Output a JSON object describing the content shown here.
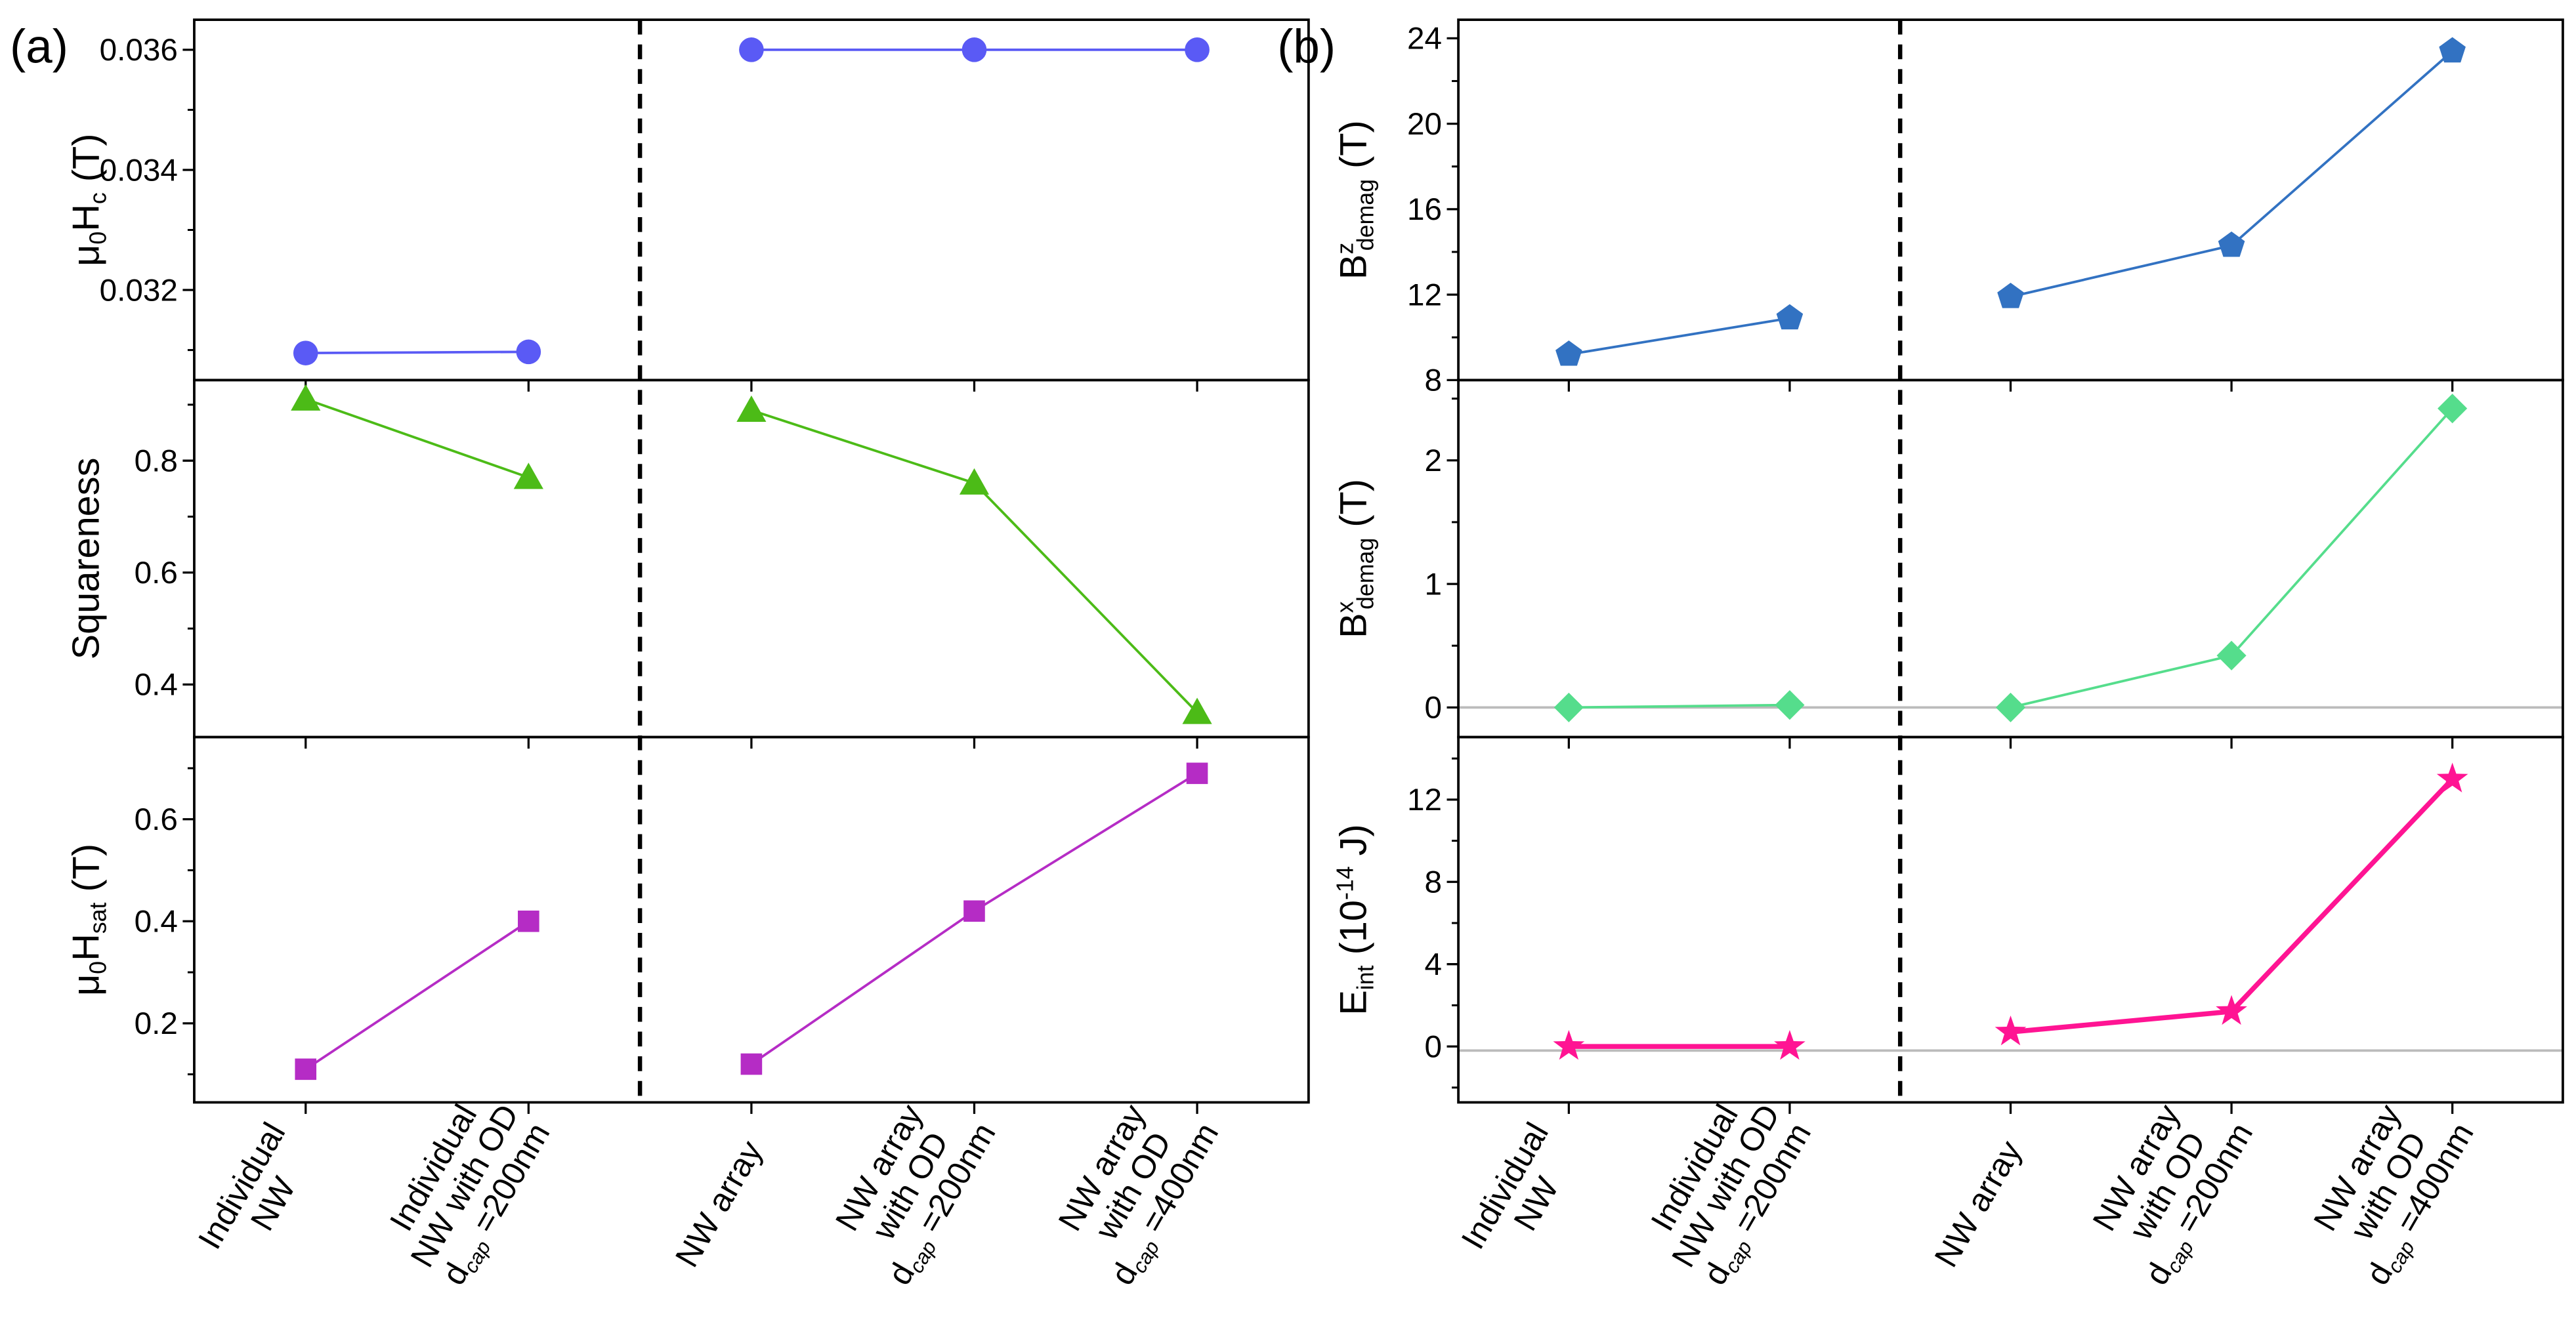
{
  "chart_data": [
    {
      "panel": "(a)",
      "type": "line",
      "categories": [
        [
          {
            "t": "Individual"
          },
          {
            "t": "NW"
          }
        ],
        [
          {
            "t": "Individual"
          },
          {
            "t": "NW with OD"
          },
          {
            "t": "d",
            "sub": "cap",
            "post": " =200nm"
          }
        ],
        [
          {
            "t": "NW array"
          }
        ],
        [
          {
            "t": "NW array"
          },
          {
            "t": "with OD"
          },
          {
            "t": "d",
            "sub": "cap",
            "post": " =200nm"
          }
        ],
        [
          {
            "t": "NW array"
          },
          {
            "t": "with OD"
          },
          {
            "t": "d",
            "sub": "cap",
            "post": " =400nm"
          }
        ]
      ],
      "separator_after_index": 1.5,
      "subplots": [
        {
          "ylabel": [
            {
              "t": "μ"
            },
            {
              "t": "0",
              "s": "sub"
            },
            {
              "t": "H"
            },
            {
              "t": "c",
              "s": "sub"
            },
            {
              "t": " (T)"
            }
          ],
          "values": [
            0.03095,
            0.03097,
            0.036,
            0.036,
            0.036
          ],
          "ylim": [
            0.0305,
            0.0365
          ],
          "yticks": [
            0.032,
            0.034,
            0.036
          ],
          "yticklabels": [
            "0.032",
            "0.034",
            "0.036"
          ],
          "minor": [
            0.031,
            0.033,
            0.035
          ],
          "marker": "circle",
          "color": "#5a5af5",
          "linewidth": 1.5
        },
        {
          "ylabel": [
            {
              "t": "Squareness"
            }
          ],
          "values": [
            0.91,
            0.77,
            0.89,
            0.76,
            0.35
          ],
          "ylim": [
            0.306,
            0.944
          ],
          "yticks": [
            0.4,
            0.6,
            0.8
          ],
          "yticklabels": [
            "0.4",
            "0.6",
            "0.8"
          ],
          "minor": [
            0.3,
            0.5,
            0.7,
            0.9
          ],
          "marker": "triangle",
          "color": "#4cbb17",
          "linewidth": 1.5
        },
        {
          "ylabel": [
            {
              "t": "μ"
            },
            {
              "t": "0",
              "s": "sub"
            },
            {
              "t": "H"
            },
            {
              "t": "sat",
              "s": "sub"
            },
            {
              "t": " (T)"
            }
          ],
          "values": [
            0.11,
            0.4,
            0.12,
            0.42,
            0.69
          ],
          "ylim": [
            0.045,
            0.761
          ],
          "yticks": [
            0.2,
            0.4,
            0.6
          ],
          "yticklabels": [
            "0.2",
            "0.4",
            "0.6"
          ],
          "minor": [
            0.1,
            0.3,
            0.5,
            0.7
          ],
          "marker": "square",
          "color": "#b52cc5",
          "linewidth": 1.5
        }
      ]
    },
    {
      "panel": "(b)",
      "type": "line",
      "categories": [
        [
          {
            "t": "Individual"
          },
          {
            "t": "NW"
          }
        ],
        [
          {
            "t": "Individual"
          },
          {
            "t": "NW with OD"
          },
          {
            "t": "d",
            "sub": "cap",
            "post": " =200nm"
          }
        ],
        [
          {
            "t": "NW array"
          }
        ],
        [
          {
            "t": "NW array"
          },
          {
            "t": "with OD"
          },
          {
            "t": "d",
            "sub": "cap",
            "post": " =200nm"
          }
        ],
        [
          {
            "t": "NW array"
          },
          {
            "t": "with OD"
          },
          {
            "t": "d",
            "sub": "cap",
            "post": " =400nm"
          }
        ]
      ],
      "separator_after_index": 1.5,
      "subplots": [
        {
          "ylabel": [
            {
              "t": "B"
            },
            {
              "t": "z",
              "s": "sup"
            },
            {
              "t": "demag",
              "s": "sub"
            },
            {
              "t": " (T)"
            }
          ],
          "values": [
            9.2,
            10.9,
            11.9,
            14.3,
            23.4
          ],
          "ylim": [
            8,
            24.87
          ],
          "yticks": [
            8,
            12,
            16,
            20,
            24
          ],
          "yticklabels": [
            "8",
            "12",
            "16",
            "20",
            "24"
          ],
          "minor": [
            10,
            14,
            18,
            22
          ],
          "marker": "pentagon",
          "color": "#3272c2",
          "linewidth": 1.5
        },
        {
          "ylabel": [
            {
              "t": "B"
            },
            {
              "t": "x",
              "s": "sup"
            },
            {
              "t": "demag",
              "s": "sub"
            },
            {
              "t": " (T)"
            }
          ],
          "values": [
            0,
            0.02,
            0,
            0.42,
            2.42
          ],
          "ylim": [
            -0.24,
            2.65
          ],
          "yticks": [
            0,
            1,
            2
          ],
          "yticklabels": [
            "0",
            "1",
            "2"
          ],
          "minor": [
            0.5,
            1.5,
            2.5
          ],
          "reference_line": 0,
          "marker": "diamond",
          "color": "#55dd8c",
          "linewidth": 1.5
        },
        {
          "ylabel": [
            {
              "t": "E"
            },
            {
              "t": "int",
              "s": "sub"
            },
            {
              "t": " (10"
            },
            {
              "t": "-14",
              "s": "sup"
            },
            {
              "t": " J)"
            }
          ],
          "values": [
            0,
            0,
            0.7,
            1.7,
            13.0
          ],
          "ylim": [
            -2.72,
            15.04
          ],
          "yticks": [
            0,
            4,
            8,
            12
          ],
          "yticklabels": [
            "0",
            "4",
            "8",
            "12"
          ],
          "minor": [
            -2,
            2,
            6,
            10,
            14
          ],
          "reference_line": -0.2,
          "marker": "star",
          "color": "#ff1493",
          "linewidth": 3
        }
      ]
    }
  ]
}
